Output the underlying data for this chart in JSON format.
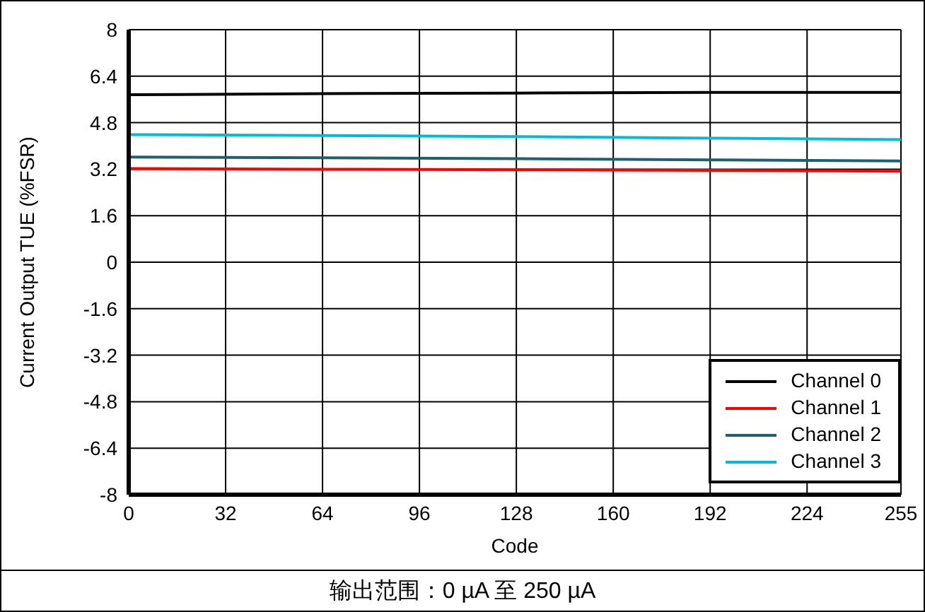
{
  "chart_data": {
    "type": "line",
    "xlabel": "Code",
    "ylabel": "Current Output TUE (%FSR)",
    "annotations": [
      "输出范围：0 µA 至 250 µA"
    ],
    "x": [
      0,
      64,
      128,
      192,
      255
    ],
    "xlim": [
      0,
      255
    ],
    "xticks": [
      0,
      32,
      64,
      96,
      128,
      160,
      192,
      224,
      255
    ],
    "ylim": [
      -8,
      8
    ],
    "yticks": [
      -8,
      -6.4,
      -4.8,
      -3.2,
      -1.6,
      0,
      1.6,
      3.2,
      4.8,
      6.4,
      8
    ],
    "grid": true,
    "legend": "bottom right",
    "line_style": "solid",
    "series": [
      {
        "name": "Channel 0",
        "color": "#000000",
        "values": [
          5.76,
          5.8,
          5.82,
          5.84,
          5.84
        ]
      },
      {
        "name": "Channel 1",
        "color": "#ff0000",
        "values": [
          3.22,
          3.2,
          3.18,
          3.16,
          3.13
        ]
      },
      {
        "name": "Channel 2",
        "color": "#1f5f6f",
        "values": [
          3.62,
          3.59,
          3.56,
          3.52,
          3.48
        ]
      },
      {
        "name": "Channel 3",
        "color": "#00bcd4",
        "values": [
          4.39,
          4.36,
          4.32,
          4.27,
          4.22
        ]
      }
    ]
  }
}
